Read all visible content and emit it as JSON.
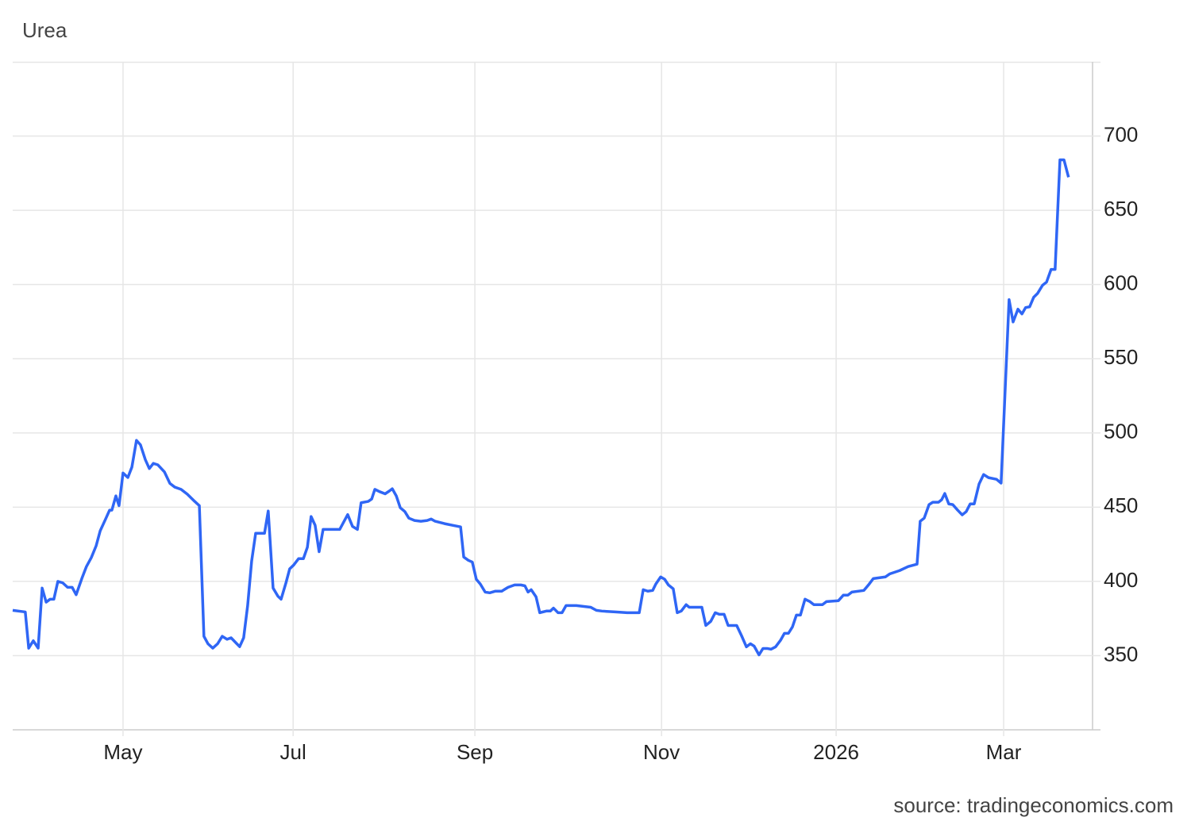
{
  "chart_data": {
    "type": "line",
    "title": "Urea",
    "source": "source: tradingeconomics.com",
    "color": "#2f66f5",
    "grid": true,
    "xlim": [
      0,
      377.8
    ],
    "xticks": [
      {
        "value": 38.6,
        "label": "May"
      },
      {
        "value": 98.1,
        "label": "Jul"
      },
      {
        "value": 161.7,
        "label": "Sep"
      },
      {
        "value": 227,
        "label": "Nov"
      },
      {
        "value": 288.1,
        "label": "2026"
      },
      {
        "value": 346.7,
        "label": "Mar"
      }
    ],
    "ylim": [
      300,
      750
    ],
    "yticks": [
      350,
      400,
      450,
      500,
      550,
      600,
      650,
      700
    ],
    "x": [
      0,
      4.4,
      5.6,
      7.2,
      8.9,
      10.3,
      11.7,
      13.1,
      14.4,
      15.8,
      17.5,
      19.2,
      20.8,
      22.2,
      24.2,
      25.8,
      27.5,
      29.2,
      30.6,
      32.5,
      33.9,
      34.7,
      36.1,
      37.2,
      38.6,
      40.3,
      41.7,
      43.3,
      44.7,
      46.4,
      47.8,
      49.2,
      50.8,
      53.1,
      55,
      56.7,
      58.9,
      61.1,
      63.6,
      65.3,
      66.9,
      68.3,
      70,
      71.7,
      73.3,
      75,
      76.4,
      78.1,
      79.4,
      80.8,
      82.2,
      83.6,
      85,
      87.2,
      88.1,
      89.4,
      91.1,
      92.8,
      93.9,
      95.6,
      96.9,
      98.3,
      100,
      101.7,
      103.1,
      104.4,
      105.8,
      107.2,
      108.6,
      114.4,
      117.2,
      118.9,
      120.6,
      121.9,
      124.4,
      125.6,
      126.7,
      128.3,
      130.3,
      131.7,
      132.8,
      134.2,
      135.6,
      137.2,
      138.6,
      140.6,
      142.8,
      145,
      146.4,
      147.8,
      151.1,
      153.9,
      156.7,
      157.8,
      159.4,
      160.8,
      162.2,
      163.6,
      165.3,
      166.9,
      168.9,
      171.1,
      173.3,
      175.6,
      177.8,
      179.2,
      180.3,
      181.4,
      183.1,
      184.4,
      186.7,
      188.1,
      189.2,
      190.8,
      192.2,
      193.6,
      197.2,
      202.2,
      204.2,
      206.1,
      210.8,
      215,
      219.2,
      220.6,
      222.2,
      223.9,
      225,
      226.7,
      228.1,
      229.4,
      231.1,
      232.5,
      233.9,
      235.6,
      236.7,
      241.1,
      242.5,
      244.2,
      245.8,
      247.2,
      248.9,
      250.3,
      253.3,
      255,
      256.7,
      258.1,
      259.4,
      261.1,
      262.5,
      263.9,
      265.3,
      266.9,
      268.6,
      270,
      271.4,
      272.8,
      274.2,
      275.6,
      277.2,
      278.9,
      280.3,
      283.3,
      284.7,
      288.9,
      290.6,
      292.2,
      293.6,
      297.8,
      299.4,
      301.1,
      305.3,
      306.9,
      310.3,
      313.3,
      316.4,
      317.5,
      318.9,
      320.6,
      321.9,
      323.9,
      325,
      326.1,
      327.5,
      328.9,
      330.6,
      332.2,
      333.6,
      335,
      336.4,
      338.1,
      339.7,
      341.4,
      344.2,
      345.8,
      348.6,
      350,
      351.7,
      353.1,
      354.4,
      355.8,
      357.2,
      358.6,
      360.3,
      361.7,
      363.3,
      364.7,
      366.4,
      367.8,
      369.4
    ],
    "values": [
      380.5,
      379.4,
      355,
      360,
      355,
      395.5,
      386,
      388,
      388,
      400,
      399,
      396,
      396,
      391,
      402,
      410,
      416,
      424,
      434,
      442,
      448,
      448,
      457.6,
      451,
      473,
      470,
      477,
      495,
      492,
      482,
      476,
      479.5,
      478.5,
      473.7,
      466,
      463.5,
      462,
      458.7,
      454,
      451,
      363,
      358,
      355,
      358,
      363,
      361,
      362,
      358.6,
      356,
      362,
      383.7,
      413.7,
      432.4,
      432.4,
      432.4,
      447.4,
      395.5,
      390,
      388,
      399,
      408.4,
      411,
      415.3,
      415.3,
      423,
      443.7,
      437.8,
      420,
      435,
      435,
      445,
      437,
      435,
      453,
      453.9,
      455.5,
      462,
      460.5,
      459,
      460.8,
      462.4,
      457.6,
      449.6,
      447,
      442.6,
      441,
      440.5,
      441,
      442,
      440.5,
      438.9,
      437.8,
      436.7,
      416.4,
      414.2,
      413,
      401.4,
      398.2,
      392.8,
      392.3,
      393.4,
      393.4,
      396,
      397.6,
      397.6,
      397,
      392.8,
      394.4,
      389.6,
      378.9,
      380,
      380,
      382,
      378.9,
      378.9,
      383.7,
      383.7,
      382.6,
      380.5,
      380,
      379.4,
      378.9,
      378.9,
      394.4,
      393.4,
      393.9,
      398.2,
      403,
      401.4,
      397.6,
      395,
      378.9,
      380,
      384.3,
      382.6,
      382.6,
      370.3,
      373,
      378.9,
      377.8,
      377.8,
      370.3,
      370.3,
      363.4,
      355.9,
      358,
      356.4,
      350.5,
      354.8,
      354.8,
      354.3,
      355.9,
      360.2,
      365,
      365,
      369.3,
      377.3,
      377.3,
      388,
      386.4,
      384.3,
      384.3,
      386.4,
      387,
      390.7,
      390.7,
      392.8,
      393.9,
      397.6,
      401.9,
      403,
      405.1,
      407.3,
      410,
      411.6,
      440.5,
      442.6,
      451.7,
      453.3,
      453.3,
      455,
      459.2,
      452.2,
      451.7,
      448,
      444.8,
      447,
      452.2,
      452.2,
      465.6,
      472,
      469.9,
      468.8,
      466.2,
      589.8,
      574.8,
      583.4,
      580.2,
      584.5,
      585,
      591.4,
      594.1,
      599.5,
      601.6,
      610.2,
      610.2,
      684,
      684,
      672.3
    ]
  }
}
